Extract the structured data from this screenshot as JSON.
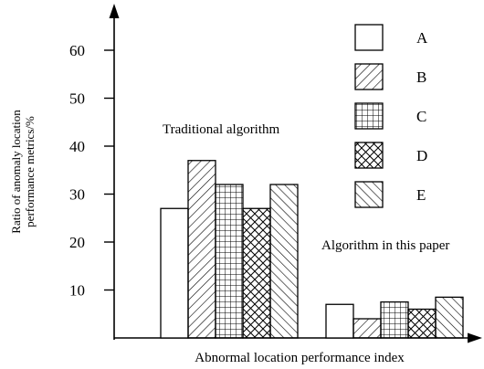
{
  "chart_data": {
    "type": "bar",
    "xlabel": "Abnormal location performance index",
    "ylabel": [
      "Ratio of anomaly location",
      "performance metrics/%"
    ],
    "ylim": [
      0,
      65
    ],
    "yticks": [
      10,
      20,
      30,
      40,
      50,
      60
    ],
    "categories": [
      "Traditional algorithm",
      "Algorithm in this paper"
    ],
    "series": [
      {
        "name": "A",
        "pattern": "none",
        "values": [
          27,
          7
        ]
      },
      {
        "name": "B",
        "pattern": "diagonal",
        "values": [
          37,
          4
        ]
      },
      {
        "name": "C",
        "pattern": "grid",
        "values": [
          32,
          7.5
        ]
      },
      {
        "name": "D",
        "pattern": "crosshatch",
        "values": [
          27,
          6
        ]
      },
      {
        "name": "E",
        "pattern": "back-diagonal",
        "values": [
          32,
          8.5
        ]
      }
    ],
    "legend_position": "top-right",
    "grid": false
  }
}
